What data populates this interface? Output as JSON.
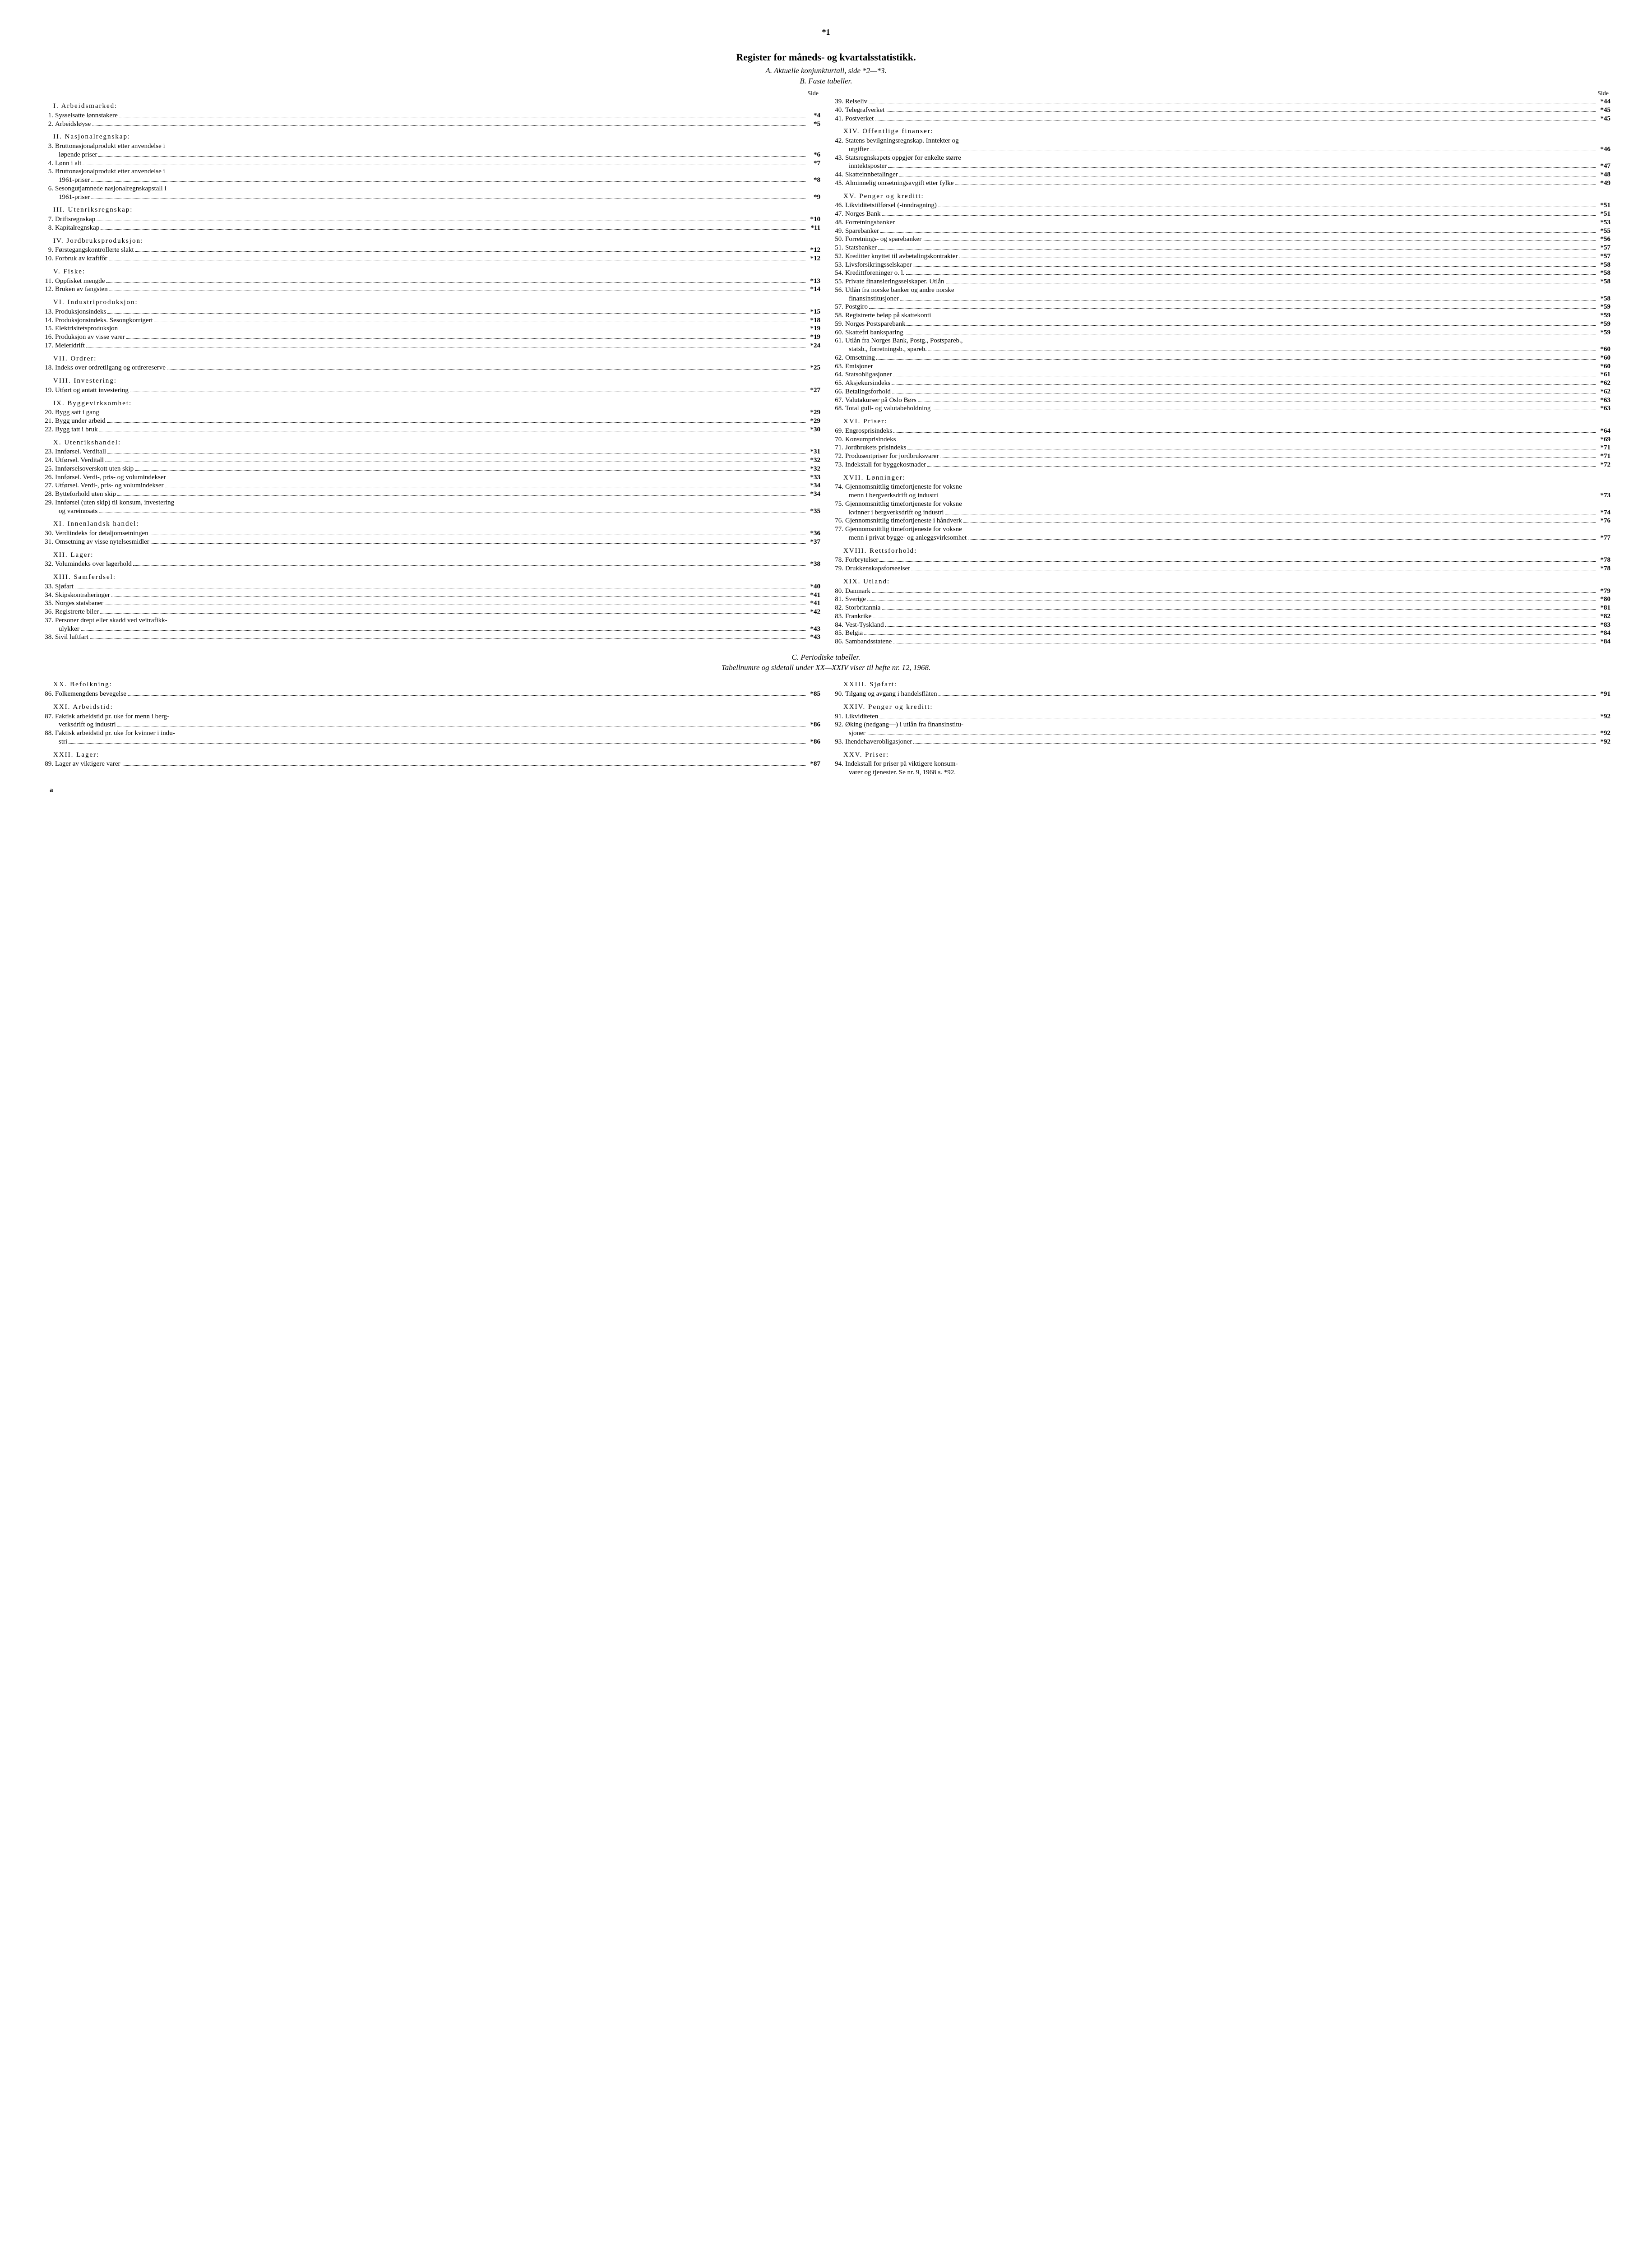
{
  "page_number": "*1",
  "title": "Register for måneds- og kvartalsstatistikk.",
  "subtitle_a": "A.  Aktuelle konjunkturtall, side *2—*3.",
  "subtitle_b": "B.  Faste tabeller.",
  "subtitle_c": "C.  Periodiske tabeller.",
  "subtitle_ref": "Tabellnumre og sidetall under XX—XXIV viser til hefte nr. 12, 1968.",
  "side_label": "Side",
  "footer_mark": "a",
  "left": [
    {
      "type": "section",
      "text": "I. Arbeidsmarked:"
    },
    {
      "type": "entry",
      "num": "1.",
      "label": "Sysselsatte lønnstakere",
      "page": "*4"
    },
    {
      "type": "entry",
      "num": "2.",
      "label": "Arbeidsløyse",
      "page": "*5"
    },
    {
      "type": "section",
      "text": "II. Nasjonalregnskap:"
    },
    {
      "type": "entry",
      "num": "3.",
      "label": "Bruttonasjonalprodukt etter anvendelse i"
    },
    {
      "type": "cont",
      "label": "løpende priser",
      "page": "*6"
    },
    {
      "type": "entry",
      "num": "4.",
      "label": "Lønn i alt",
      "page": "*7"
    },
    {
      "type": "entry",
      "num": "5.",
      "label": "Bruttonasjonalprodukt etter anvendelse i"
    },
    {
      "type": "cont",
      "label": "1961-priser",
      "page": "*8"
    },
    {
      "type": "entry",
      "num": "6.",
      "label": "Sesongutjamnede nasjonalregnskapstall i"
    },
    {
      "type": "cont",
      "label": "1961-priser",
      "page": "*9"
    },
    {
      "type": "section",
      "text": "III. Utenriksregnskap:"
    },
    {
      "type": "entry",
      "num": "7.",
      "label": "Driftsregnskap",
      "page": "*10"
    },
    {
      "type": "entry",
      "num": "8.",
      "label": "Kapitalregnskap",
      "page": "*11"
    },
    {
      "type": "section",
      "text": "IV. Jordbruksproduksjon:"
    },
    {
      "type": "entry",
      "num": "9.",
      "label": "Førstegangskontrollerte slakt",
      "page": "*12"
    },
    {
      "type": "entry",
      "num": "10.",
      "label": "Forbruk av kraftfôr",
      "page": "*12"
    },
    {
      "type": "section",
      "text": "V. Fiske:"
    },
    {
      "type": "entry",
      "num": "11.",
      "label": "Oppfisket mengde",
      "page": "*13"
    },
    {
      "type": "entry",
      "num": "12.",
      "label": "Bruken av fangsten",
      "page": "*14"
    },
    {
      "type": "section",
      "text": "VI. Industriproduksjon:"
    },
    {
      "type": "entry",
      "num": "13.",
      "label": "Produksjonsindeks",
      "page": "*15"
    },
    {
      "type": "entry",
      "num": "14.",
      "label": "Produksjonsindeks. Sesongkorrigert",
      "page": "*18"
    },
    {
      "type": "entry",
      "num": "15.",
      "label": "Elektrisitetsproduksjon",
      "page": "*19"
    },
    {
      "type": "entry",
      "num": "16.",
      "label": "Produksjon av visse varer",
      "page": "*19"
    },
    {
      "type": "entry",
      "num": "17.",
      "label": "Meieridrift",
      "page": "*24"
    },
    {
      "type": "section",
      "text": "VII. Ordrer:"
    },
    {
      "type": "entry",
      "num": "18.",
      "label": "Indeks over ordretilgang og ordrereserve",
      "page": "*25"
    },
    {
      "type": "section",
      "text": "VIII. Investering:"
    },
    {
      "type": "entry",
      "num": "19.",
      "label": "Utført og antatt investering",
      "page": "*27"
    },
    {
      "type": "section",
      "text": "IX. Byggevirksomhet:"
    },
    {
      "type": "entry",
      "num": "20.",
      "label": "Bygg satt i gang",
      "page": "*29"
    },
    {
      "type": "entry",
      "num": "21.",
      "label": "Bygg under arbeid",
      "page": "*29"
    },
    {
      "type": "entry",
      "num": "22.",
      "label": "Bygg tatt i bruk",
      "page": "*30"
    },
    {
      "type": "section",
      "text": "X. Utenrikshandel:"
    },
    {
      "type": "entry",
      "num": "23.",
      "label": "Innførsel. Verditall",
      "page": "*31"
    },
    {
      "type": "entry",
      "num": "24.",
      "label": "Utførsel. Verditall",
      "page": "*32"
    },
    {
      "type": "entry",
      "num": "25.",
      "label": "Innførselsoverskott uten skip",
      "page": "*32"
    },
    {
      "type": "entry",
      "num": "26.",
      "label": "Innførsel. Verdi-, pris- og volumindekser",
      "page": "*33"
    },
    {
      "type": "entry",
      "num": "27.",
      "label": "Utførsel. Verdi-, pris- og volumindekser",
      "page": "*34"
    },
    {
      "type": "entry",
      "num": "28.",
      "label": "Bytteforhold uten skip",
      "page": "*34"
    },
    {
      "type": "entry",
      "num": "29.",
      "label": "Innførsel (uten skip) til konsum, investering"
    },
    {
      "type": "cont",
      "label": "og vareinnsats",
      "page": "*35"
    },
    {
      "type": "section",
      "text": "XI. Innenlandsk handel:"
    },
    {
      "type": "entry",
      "num": "30.",
      "label": "Verdiindeks for detaljomsetningen",
      "page": "*36"
    },
    {
      "type": "entry",
      "num": "31.",
      "label": "Omsetning av visse nytelsesmidler",
      "page": "*37"
    },
    {
      "type": "section",
      "text": "XII. Lager:"
    },
    {
      "type": "entry",
      "num": "32.",
      "label": "Volumindeks over lagerhold",
      "page": "*38"
    },
    {
      "type": "section",
      "text": "XIII. Samferdsel:"
    },
    {
      "type": "entry",
      "num": "33.",
      "label": "Sjøfart",
      "page": "*40"
    },
    {
      "type": "entry",
      "num": "34.",
      "label": "Skipskontraheringer",
      "page": "*41"
    },
    {
      "type": "entry",
      "num": "35.",
      "label": "Norges statsbaner",
      "page": "*41"
    },
    {
      "type": "entry",
      "num": "36.",
      "label": "Registrerte biler",
      "page": "*42"
    },
    {
      "type": "entry",
      "num": "37.",
      "label": "Personer drept eller skadd ved veitrafikk-"
    },
    {
      "type": "cont",
      "label": "ulykker",
      "page": "*43"
    },
    {
      "type": "entry",
      "num": "38.",
      "label": "Sivil luftfart",
      "page": "*43"
    }
  ],
  "right": [
    {
      "type": "entry",
      "num": "39.",
      "label": "Reiseliv",
      "page": "*44"
    },
    {
      "type": "entry",
      "num": "40.",
      "label": "Telegrafverket",
      "page": "*45"
    },
    {
      "type": "entry",
      "num": "41.",
      "label": "Postverket",
      "page": "*45"
    },
    {
      "type": "section",
      "text": "XIV. Offentlige finanser:"
    },
    {
      "type": "entry",
      "num": "42.",
      "label": "Statens bevilgningsregnskap. Inntekter og"
    },
    {
      "type": "cont",
      "label": "utgifter",
      "page": "*46"
    },
    {
      "type": "entry",
      "num": "43.",
      "label": "Statsregnskapets oppgjør for enkelte større"
    },
    {
      "type": "cont",
      "label": "inntektsposter",
      "page": "*47"
    },
    {
      "type": "entry",
      "num": "44.",
      "label": "Skatteinnbetalinger",
      "page": "*48"
    },
    {
      "type": "entry",
      "num": "45.",
      "label": "Alminnelig omsetningsavgift etter fylke",
      "page": "*49"
    },
    {
      "type": "section",
      "text": "XV. Penger og kreditt:"
    },
    {
      "type": "entry",
      "num": "46.",
      "label": "Likviditetstilførsel (-inndragning)",
      "page": "*51"
    },
    {
      "type": "entry",
      "num": "47.",
      "label": "Norges Bank",
      "page": "*51"
    },
    {
      "type": "entry",
      "num": "48.",
      "label": "Forretningsbanker",
      "page": "*53"
    },
    {
      "type": "entry",
      "num": "49.",
      "label": "Sparebanker",
      "page": "*55"
    },
    {
      "type": "entry",
      "num": "50.",
      "label": "Forretnings- og sparebanker",
      "page": "*56"
    },
    {
      "type": "entry",
      "num": "51.",
      "label": "Statsbanker",
      "page": "*57"
    },
    {
      "type": "entry",
      "num": "52.",
      "label": "Kreditter knyttet til avbetalingskontrakter",
      "page": "*57"
    },
    {
      "type": "entry",
      "num": "53.",
      "label": "Livsforsikringsselskaper",
      "page": "*58"
    },
    {
      "type": "entry",
      "num": "54.",
      "label": "Kredittforeninger o. l.",
      "page": "*58"
    },
    {
      "type": "entry",
      "num": "55.",
      "label": "Private finansieringsselskaper. Utlån",
      "page": "*58"
    },
    {
      "type": "entry",
      "num": "56.",
      "label": "Utlån fra norske banker og andre norske"
    },
    {
      "type": "cont",
      "label": "finansinstitusjoner",
      "page": "*58"
    },
    {
      "type": "entry",
      "num": "57.",
      "label": "Postgiro",
      "page": "*59"
    },
    {
      "type": "entry",
      "num": "58.",
      "label": "Registrerte beløp på skattekonti",
      "page": "*59"
    },
    {
      "type": "entry",
      "num": "59.",
      "label": "Norges Postsparebank",
      "page": "*59"
    },
    {
      "type": "entry",
      "num": "60.",
      "label": "Skattefri banksparing",
      "page": "*59"
    },
    {
      "type": "entry",
      "num": "61.",
      "label": "Utlån fra Norges Bank, Postg., Postspareb.,"
    },
    {
      "type": "cont",
      "label": "statsb., forretningsb., spareb.",
      "page": "*60"
    },
    {
      "type": "entry",
      "num": "62.",
      "label": "Omsetning",
      "page": "*60"
    },
    {
      "type": "entry",
      "num": "63.",
      "label": "Emisjoner",
      "page": "*60"
    },
    {
      "type": "entry",
      "num": "64.",
      "label": "Statsobligasjoner",
      "page": "*61"
    },
    {
      "type": "entry",
      "num": "65.",
      "label": "Aksjekursindeks",
      "page": "*62"
    },
    {
      "type": "entry",
      "num": "66.",
      "label": "Betalingsforhold",
      "page": "*62"
    },
    {
      "type": "entry",
      "num": "67.",
      "label": "Valutakurser på Oslo Børs",
      "page": "*63"
    },
    {
      "type": "entry",
      "num": "68.",
      "label": "Total gull- og valutabeholdning",
      "page": "*63"
    },
    {
      "type": "section",
      "text": "XVI. Priser:"
    },
    {
      "type": "entry",
      "num": "69.",
      "label": "Engrosprisindeks",
      "page": "*64"
    },
    {
      "type": "entry",
      "num": "70.",
      "label": "Konsumprisindeks",
      "page": "*69"
    },
    {
      "type": "entry",
      "num": "71.",
      "label": "Jordbrukets prisindeks",
      "page": "*71"
    },
    {
      "type": "entry",
      "num": "72.",
      "label": "Produsentpriser for jordbruksvarer",
      "page": "*71"
    },
    {
      "type": "entry",
      "num": "73.",
      "label": "Indekstall for byggekostnader",
      "page": "*72"
    },
    {
      "type": "section",
      "text": "XVII. Lønninger:"
    },
    {
      "type": "entry",
      "num": "74.",
      "label": "Gjennomsnittlig timefortjeneste for voksne"
    },
    {
      "type": "cont",
      "label": "menn i bergverksdrift og industri",
      "page": "*73"
    },
    {
      "type": "entry",
      "num": "75.",
      "label": "Gjennomsnittlig timefortjeneste for voksne"
    },
    {
      "type": "cont",
      "label": "kvinner i bergverksdrift og industri",
      "page": "*74"
    },
    {
      "type": "entry",
      "num": "76.",
      "label": "Gjennomsnittlig timefortjeneste i håndverk",
      "page": "*76"
    },
    {
      "type": "entry",
      "num": "77.",
      "label": "Gjennomsnittlig timefortjeneste for voksne"
    },
    {
      "type": "cont",
      "label": "menn i privat bygge- og anleggsvirksomhet",
      "page": "*77"
    },
    {
      "type": "section",
      "text": "XVIII. Rettsforhold:"
    },
    {
      "type": "entry",
      "num": "78.",
      "label": "Forbrytelser",
      "page": "*78"
    },
    {
      "type": "entry",
      "num": "79.",
      "label": "Drukkenskapsforseelser",
      "page": "*78"
    },
    {
      "type": "section",
      "text": "XIX. Utland:"
    },
    {
      "type": "entry",
      "num": "80.",
      "label": "Danmark",
      "page": "*79"
    },
    {
      "type": "entry",
      "num": "81.",
      "label": "Sverige",
      "page": "*80"
    },
    {
      "type": "entry",
      "num": "82.",
      "label": "Storbritannia",
      "page": "*81"
    },
    {
      "type": "entry",
      "num": "83.",
      "label": "Frankrike",
      "page": "*82"
    },
    {
      "type": "entry",
      "num": "84.",
      "label": "Vest-Tyskland",
      "page": "*83"
    },
    {
      "type": "entry",
      "num": "85.",
      "label": "Belgia",
      "page": "*84"
    },
    {
      "type": "entry",
      "num": "86.",
      "label": "Sambandsstatene",
      "page": "*84"
    }
  ],
  "left2": [
    {
      "type": "section",
      "text": "XX. Befolkning:"
    },
    {
      "type": "entry",
      "num": "86.",
      "label": "Folkemengdens bevegelse",
      "page": "*85"
    },
    {
      "type": "section",
      "text": "XXI. Arbeidstid:"
    },
    {
      "type": "entry",
      "num": "87.",
      "label": "Faktisk arbeidstid pr. uke for menn i berg-"
    },
    {
      "type": "cont",
      "label": "verksdrift og industri",
      "page": "*86"
    },
    {
      "type": "entry",
      "num": "88.",
      "label": "Faktisk arbeidstid pr. uke for kvinner i indu-"
    },
    {
      "type": "cont",
      "label": "stri",
      "page": "*86"
    },
    {
      "type": "section",
      "text": "XXII. Lager:"
    },
    {
      "type": "entry",
      "num": "89.",
      "label": "Lager av viktigere varer",
      "page": "*87"
    }
  ],
  "right2": [
    {
      "type": "section",
      "text": "XXIII. Sjøfart:"
    },
    {
      "type": "entry",
      "num": "90.",
      "label": "Tilgang og avgang i handelsflåten",
      "page": "*91"
    },
    {
      "type": "section",
      "text": "XXIV. Penger og kreditt:"
    },
    {
      "type": "entry",
      "num": "91.",
      "label": "Likviditeten",
      "page": "*92"
    },
    {
      "type": "entry",
      "num": "92.",
      "label": "Øking (nedgang—) i utlån fra finansinstitu-"
    },
    {
      "type": "cont",
      "label": "sjoner",
      "page": "*92"
    },
    {
      "type": "entry",
      "num": "93.",
      "label": "Ihendehaverobligasjoner",
      "page": "*92"
    },
    {
      "type": "section",
      "text": "XXV. Priser:"
    },
    {
      "type": "entry",
      "num": "94.",
      "label": "Indekstall for priser på viktigere konsum-"
    },
    {
      "type": "cont",
      "label": "varer og tjenester. Se nr. 9, 1968 s. *92."
    }
  ]
}
